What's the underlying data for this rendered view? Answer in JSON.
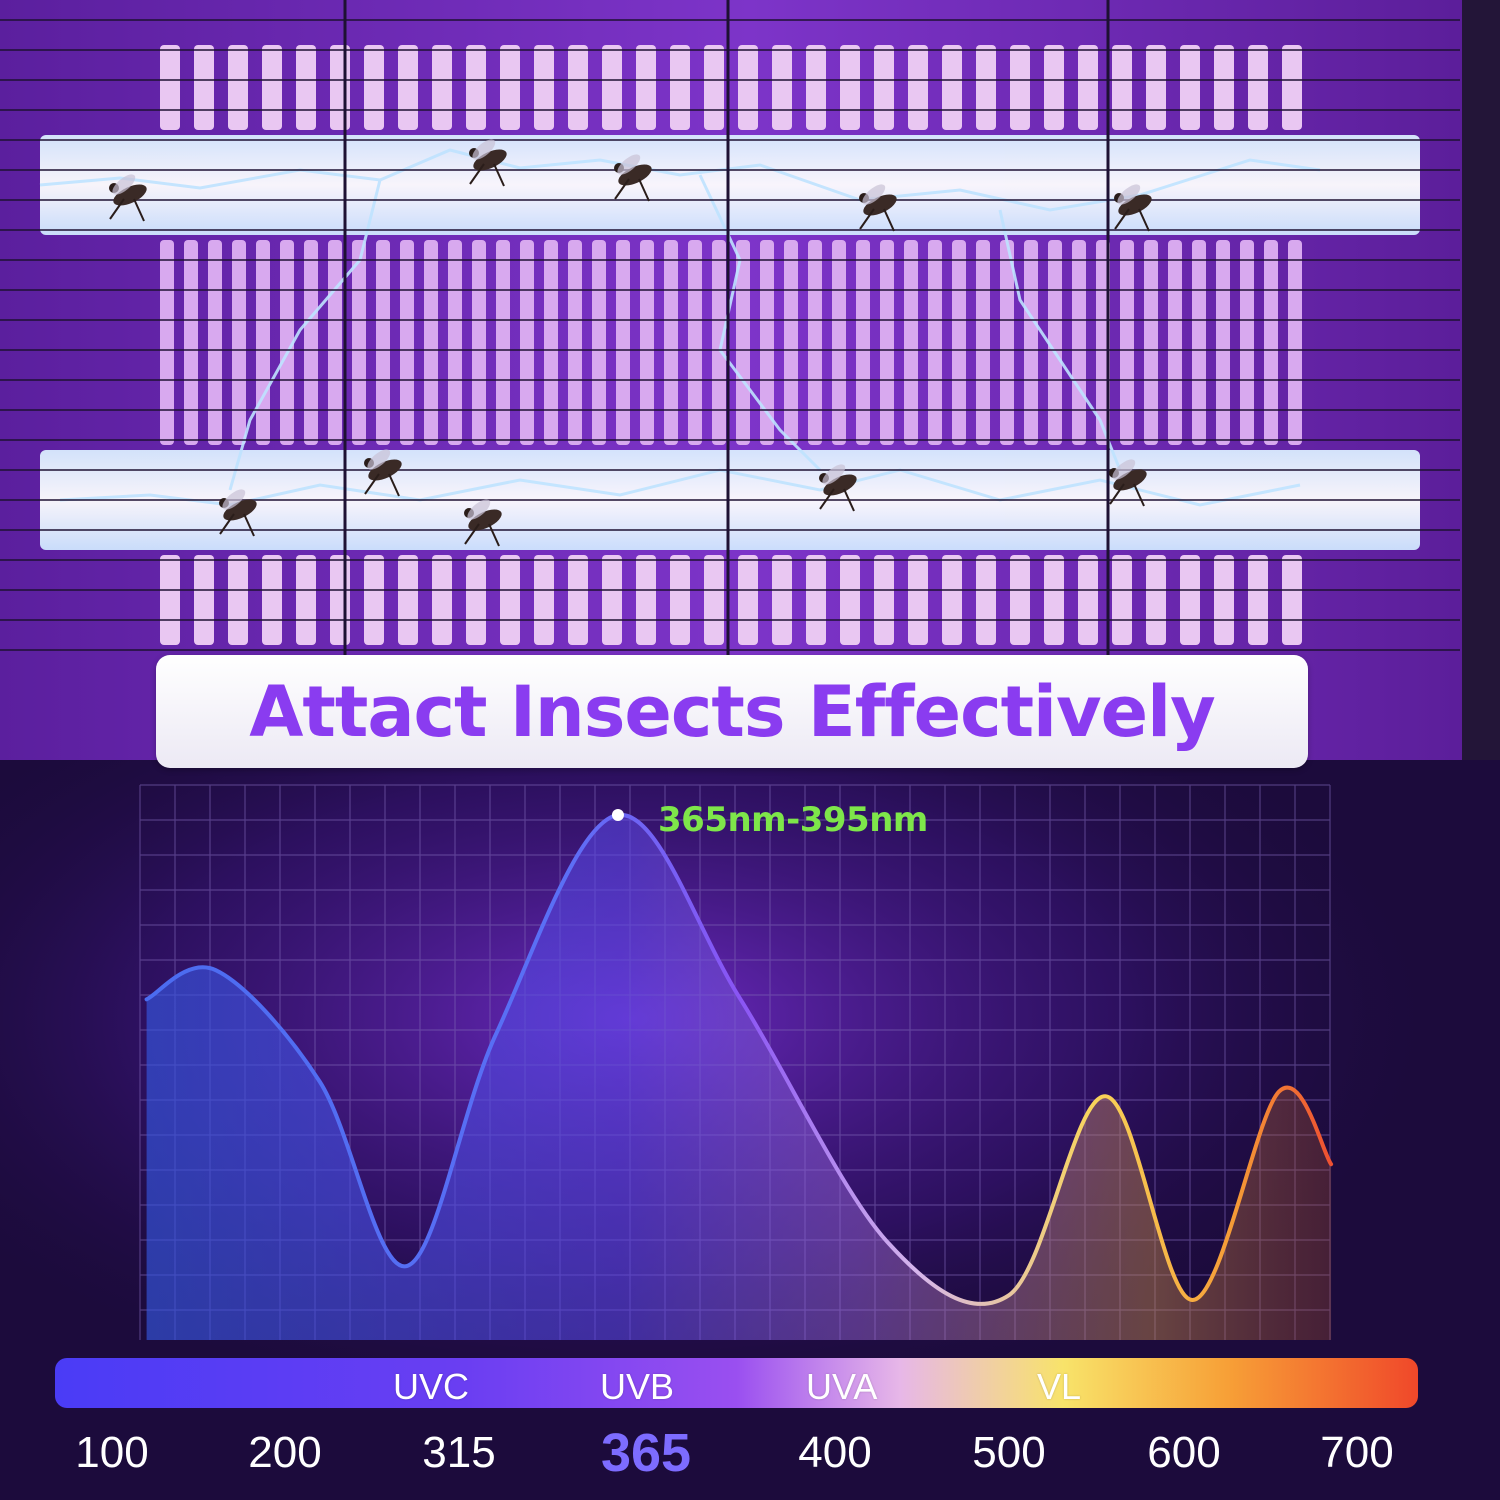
{
  "headline": "Attact Insects Effectively",
  "peak_label": "365nm-395nm",
  "colors": {
    "headline": "#8a3cf0",
    "peak_label": "#7ee64a",
    "highlight_tick": "#7d6cff",
    "background": "#1c0b3c"
  },
  "chart_data": {
    "type": "line",
    "title": "",
    "xlabel": "",
    "ylabel": "",
    "grid": true,
    "x_ticks": [
      "100",
      "200",
      "315",
      "365",
      "400",
      "500",
      "600",
      "700"
    ],
    "highlight_tick": "365",
    "bands": [
      {
        "label": "UVC",
        "color": "#5a48ff"
      },
      {
        "label": "UVB",
        "color": "#7a3cf5"
      },
      {
        "label": "UVA",
        "color": "#c98ad8"
      },
      {
        "label": "VL",
        "color": "#f6c940"
      }
    ],
    "series": [
      {
        "points": [
          {
            "tick_pos": 0.2,
            "value": 0.62
          },
          {
            "tick_pos": 0.6,
            "value": 0.68
          },
          {
            "tick_pos": 1.2,
            "value": 0.45
          },
          {
            "tick_pos": 1.7,
            "value": 0.07
          },
          {
            "tick_pos": 2.2,
            "value": 0.55
          },
          {
            "tick_pos": 2.85,
            "value": 1.0
          },
          {
            "tick_pos": 3.5,
            "value": 0.62
          },
          {
            "tick_pos": 4.3,
            "value": 0.12
          },
          {
            "tick_pos": 5.0,
            "value": 0.01
          },
          {
            "tick_pos": 5.55,
            "value": 0.42
          },
          {
            "tick_pos": 6.05,
            "value": 0.0
          },
          {
            "tick_pos": 6.55,
            "value": 0.43
          },
          {
            "tick_pos": 6.85,
            "value": 0.28
          }
        ],
        "peak_tick_pos": 2.85
      }
    ]
  }
}
